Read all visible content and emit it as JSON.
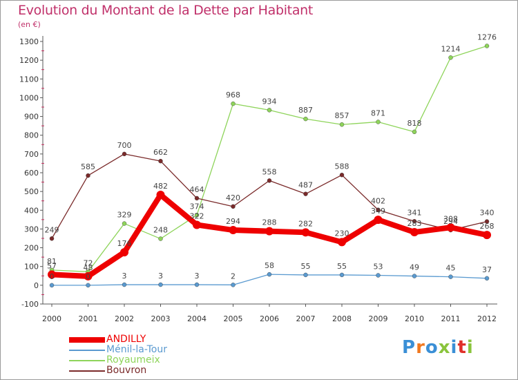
{
  "title": "Evolution du Montant de la Dette par Habitant",
  "subtitle": "(en €)",
  "logo": {
    "text": "Proxiti",
    "colors": [
      "#3a8fd6",
      "#f07820",
      "#3a8fd6",
      "#8ac43c",
      "#3a8fd6",
      "#e0302a",
      "#8ac43c"
    ]
  },
  "chart_data": {
    "type": "line",
    "x": [
      "2000",
      "2001",
      "2002",
      "2003",
      "2004",
      "2005",
      "2006",
      "2007",
      "2008",
      "2009",
      "2010",
      "2011",
      "2012"
    ],
    "ylim": [
      -100,
      1300
    ],
    "yticks": [
      -100,
      0,
      100,
      200,
      300,
      400,
      500,
      600,
      700,
      800,
      900,
      1000,
      1100,
      1200,
      1300
    ],
    "grid": false,
    "legend_position": "bottom-left",
    "series": [
      {
        "name": "ANDILLY",
        "color": "#ee0000",
        "values": [
          57,
          48,
          176,
          482,
          322,
          294,
          288,
          282,
          230,
          349,
          283,
          308,
          268
        ]
      },
      {
        "name": "Ménil-la-Tour",
        "color": "#5a9ad0",
        "values": [
          0,
          0,
          3,
          3,
          3,
          2,
          58,
          55,
          55,
          53,
          49,
          45,
          37
        ]
      },
      {
        "name": "Royaumeix",
        "color": "#8ed45a",
        "values": [
          81,
          72,
          329,
          248,
          374,
          968,
          934,
          887,
          857,
          871,
          818,
          1214,
          1276
        ]
      },
      {
        "name": "Bouvron",
        "color": "#7a2a2a",
        "values": [
          249,
          585,
          700,
          662,
          464,
          420,
          558,
          487,
          588,
          402,
          341,
          294,
          340
        ]
      }
    ]
  }
}
